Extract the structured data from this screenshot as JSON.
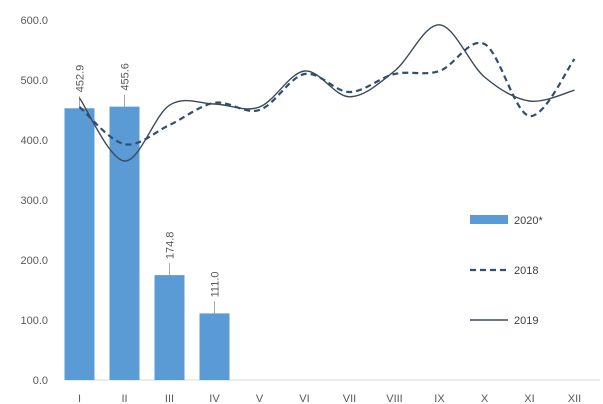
{
  "chart_data": {
    "type": "bar",
    "categories": [
      "I",
      "II",
      "III",
      "IV",
      "V",
      "VI",
      "VII",
      "VIII",
      "IX",
      "X",
      "XI",
      "XII"
    ],
    "ylim": [
      0,
      600
    ],
    "yticks": [
      "0.0",
      "100.0",
      "200.0",
      "300.0",
      "400.0",
      "500.0",
      "600.0"
    ],
    "grid": false,
    "legend_position": "right",
    "bar_series": {
      "name": "2020*",
      "color": "#5b9bd5",
      "values": [
        452.9,
        455.6,
        174.8,
        111.0
      ],
      "labels": [
        "452.9",
        "455.6",
        "174.8",
        "111.0"
      ]
    },
    "line_series": [
      {
        "name": "2018",
        "style": "dashed",
        "color": "#2f4f6f",
        "values": [
          455,
          393,
          425,
          462,
          450,
          510,
          480,
          510,
          515,
          560,
          440,
          535
        ]
      },
      {
        "name": "2019",
        "style": "solid",
        "color": "#3a4a5a",
        "values": [
          470,
          365,
          458,
          460,
          455,
          515,
          472,
          515,
          592,
          505,
          465,
          483
        ]
      }
    ]
  }
}
